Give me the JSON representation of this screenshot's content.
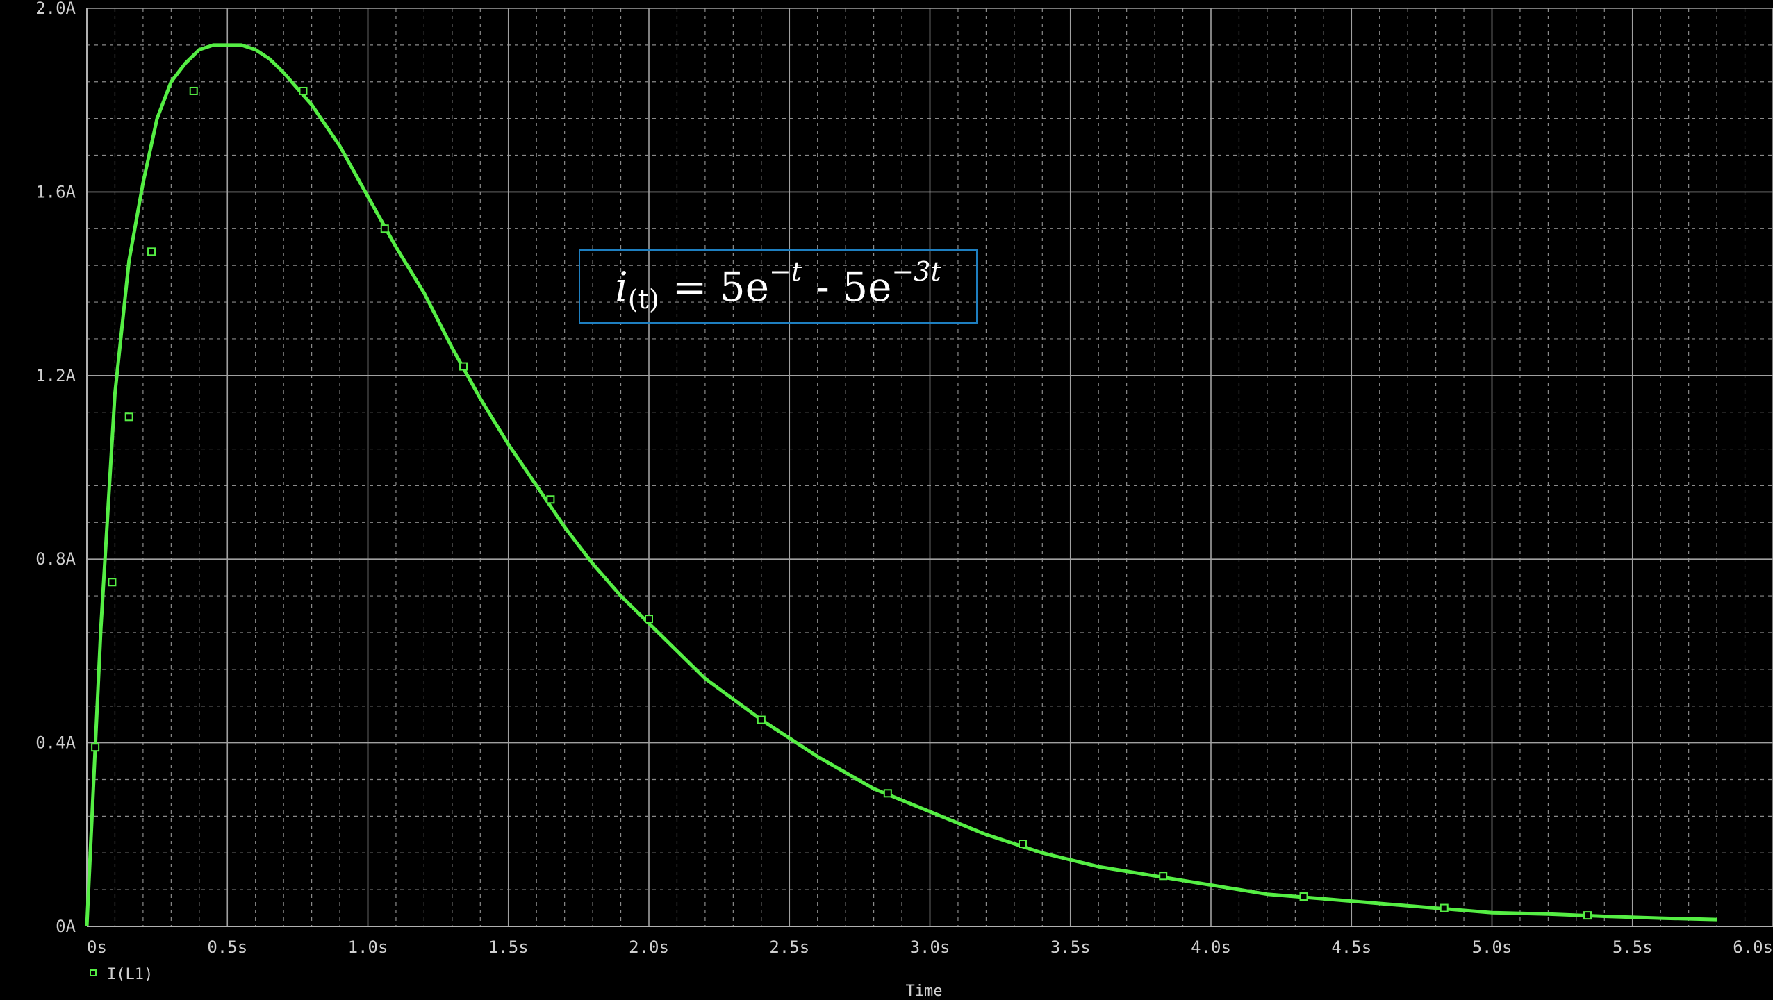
{
  "chart_data": {
    "type": "line",
    "title": "",
    "xlabel": "Time",
    "ylabel": "",
    "xlim": [
      0,
      6.0
    ],
    "ylim": [
      0,
      2.0
    ],
    "grid": true,
    "x_ticks": [
      "0s",
      "0.5s",
      "1.0s",
      "1.5s",
      "2.0s",
      "2.5s",
      "3.0s",
      "3.5s",
      "4.0s",
      "4.5s",
      "5.0s",
      "5.5s",
      "6.0s"
    ],
    "y_ticks": [
      "0A",
      "0.4A",
      "0.8A",
      "1.2A",
      "1.6A",
      "2.0A"
    ],
    "legend_placement": "bottom-left",
    "series": [
      {
        "name": "I(L1)",
        "color": "#55ee44",
        "marker": "hollow-square",
        "x": [
          0,
          0.05,
          0.1,
          0.15,
          0.2,
          0.25,
          0.3,
          0.35,
          0.4,
          0.45,
          0.5,
          0.55,
          0.6,
          0.65,
          0.7,
          0.8,
          0.9,
          1.0,
          1.1,
          1.2,
          1.3,
          1.4,
          1.5,
          1.6,
          1.7,
          1.8,
          1.9,
          2.0,
          2.2,
          2.4,
          2.6,
          2.8,
          3.0,
          3.2,
          3.4,
          3.6,
          3.8,
          4.0,
          4.2,
          4.4,
          4.6,
          4.8,
          5.0,
          5.2,
          5.4,
          5.6,
          5.8
        ],
        "y": [
          0.0,
          0.65,
          1.16,
          1.45,
          1.62,
          1.76,
          1.84,
          1.88,
          1.91,
          1.92,
          1.92,
          1.92,
          1.91,
          1.89,
          1.86,
          1.79,
          1.7,
          1.59,
          1.48,
          1.38,
          1.26,
          1.15,
          1.05,
          0.96,
          0.87,
          0.79,
          0.72,
          0.66,
          0.54,
          0.45,
          0.37,
          0.3,
          0.25,
          0.2,
          0.16,
          0.13,
          0.11,
          0.09,
          0.07,
          0.06,
          0.05,
          0.04,
          0.03,
          0.027,
          0.022,
          0.018,
          0.015
        ]
      }
    ],
    "marker_points": [
      [
        0.03,
        0.39
      ],
      [
        0.09,
        0.75
      ],
      [
        0.15,
        1.11
      ],
      [
        0.23,
        1.47
      ],
      [
        0.38,
        1.82
      ],
      [
        0.77,
        1.82
      ],
      [
        1.06,
        1.52
      ],
      [
        1.34,
        1.22
      ],
      [
        1.65,
        0.93
      ],
      [
        2.0,
        0.67
      ],
      [
        2.4,
        0.45
      ],
      [
        2.85,
        0.29
      ],
      [
        3.33,
        0.18
      ],
      [
        3.83,
        0.11
      ],
      [
        4.33,
        0.065
      ],
      [
        4.83,
        0.04
      ],
      [
        5.34,
        0.024
      ]
    ],
    "annotation": {
      "lhs": "i",
      "sub": "(t)",
      "eq": "= 5e",
      "sup1": "−t",
      "mid": "- 5e",
      "sup2": "−3t"
    }
  }
}
